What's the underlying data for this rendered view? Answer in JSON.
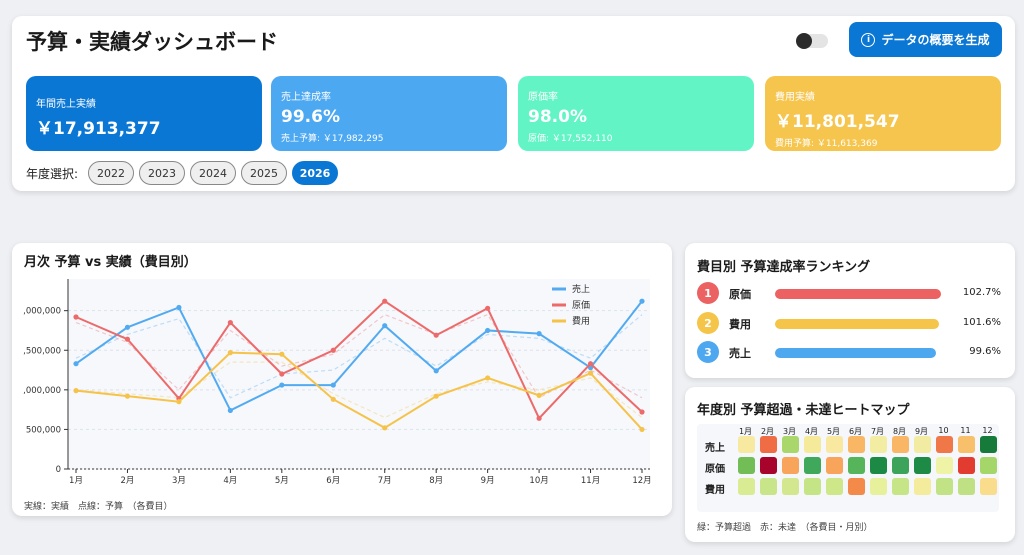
{
  "header": {
    "title": "予算・実績ダッシュボード",
    "generate_button": "データの概要を生成",
    "info_glyph": "i"
  },
  "kpis": {
    "sales": {
      "label": "年間売上実績",
      "value": "￥17,913,377"
    },
    "rate": {
      "label": "売上達成率",
      "value": "99.6%",
      "sub": "売上予算: ￥17,982,295"
    },
    "cost": {
      "label": "原価率",
      "value": "98.0%",
      "sub": "原価: ￥17,552,110"
    },
    "expense": {
      "label": "費用実績",
      "value": "￥11,801,547",
      "sub": "費用予算: ￥11,613,369"
    }
  },
  "year_selector": {
    "label": "年度選択:",
    "years": [
      "2022",
      "2023",
      "2024",
      "2025",
      "2026"
    ],
    "active": "2026"
  },
  "monthly_chart": {
    "title": "月次 予算 vs 実績（費目別）",
    "note": "実線：実績　点線：予算　（各費目）"
  },
  "chart_data": {
    "type": "line",
    "title": "月次 予算 vs 実績（費目別）",
    "categories": [
      "1月",
      "2月",
      "3月",
      "4月",
      "5月",
      "6月",
      "7月",
      "8月",
      "9月",
      "10月",
      "11月",
      "12月"
    ],
    "y_ticks": [
      0,
      500000,
      1000000,
      1500000,
      2000000
    ],
    "y_tick_labels": [
      "0",
      "500,000",
      ",000,000",
      ",500,000",
      ",000,000"
    ],
    "ylim": [
      0,
      2400000
    ],
    "legend_position": "top-right",
    "grid": true,
    "series": [
      {
        "name": "売上",
        "color": "#52aaf0",
        "values": [
          1330000,
          1790000,
          2040000,
          740000,
          1060000,
          1060000,
          1810000,
          1240000,
          1750000,
          1710000,
          1280000,
          2120000
        ],
        "budget": [
          1400000,
          1700000,
          1900000,
          900000,
          1200000,
          1250000,
          1650000,
          1300000,
          1700000,
          1650000,
          1400000,
          1950000
        ]
      },
      {
        "name": "原価",
        "color": "#ec6a6a",
        "values": [
          1920000,
          1640000,
          890000,
          1850000,
          1200000,
          1500000,
          2120000,
          1690000,
          2030000,
          640000,
          1330000,
          720000
        ],
        "budget": [
          1850000,
          1600000,
          1000000,
          1750000,
          1300000,
          1450000,
          1950000,
          1700000,
          1950000,
          900000,
          1250000,
          900000
        ]
      },
      {
        "name": "費用",
        "color": "#f6c34a",
        "values": [
          990000,
          920000,
          850000,
          1470000,
          1450000,
          880000,
          520000,
          920000,
          1150000,
          930000,
          1210000,
          500000
        ],
        "budget": [
          1000000,
          950000,
          900000,
          1350000,
          1350000,
          950000,
          650000,
          950000,
          1100000,
          1000000,
          1150000,
          650000
        ]
      }
    ]
  },
  "ranking": {
    "title": "費目別 予算達成率ランキング",
    "items": [
      {
        "rank": "1",
        "name": "原価",
        "value": "102.7%",
        "pct": 102.7,
        "color": "#ec6161"
      },
      {
        "rank": "2",
        "name": "費用",
        "value": "101.6%",
        "pct": 101.6,
        "color": "#f4c548"
      },
      {
        "rank": "3",
        "name": "売上",
        "value": "99.6%",
        "pct": 99.6,
        "color": "#4ea8f0"
      }
    ]
  },
  "heatmap": {
    "title": "年度別 予算超過・未達ヒートマップ",
    "months": [
      "1月",
      "2月",
      "3月",
      "4月",
      "5月",
      "6月",
      "7月",
      "8月",
      "9月",
      "10月",
      "11月",
      "12月"
    ],
    "rows": [
      {
        "label": "売上",
        "colors": [
          "#f7eaa0",
          "#ef6c44",
          "#a9d76b",
          "#f5e99a",
          "#f8e8a0",
          "#f9b765",
          "#f3eda4",
          "#f9b765",
          "#f2eca3",
          "#ef7748",
          "#f8c06a",
          "#167a3b"
        ]
      },
      {
        "label": "原価",
        "colors": [
          "#72bd55",
          "#a8032b",
          "#f8a45b",
          "#40a85a",
          "#f8a45b",
          "#56b45a",
          "#1c8a45",
          "#3ca45a",
          "#1d8b46",
          "#eef3a5",
          "#e23b2f",
          "#a5d66a"
        ]
      },
      {
        "label": "費用",
        "colors": [
          "#d9eb93",
          "#c9e58a",
          "#d3e88e",
          "#c4e486",
          "#cde789",
          "#f48a4a",
          "#e7f19b",
          "#c5e587",
          "#f3ec9d",
          "#c1e385",
          "#bfe183",
          "#f9dd8c"
        ]
      }
    ],
    "note": "緑：予算超過　赤：未達　（各費目・月別）"
  }
}
